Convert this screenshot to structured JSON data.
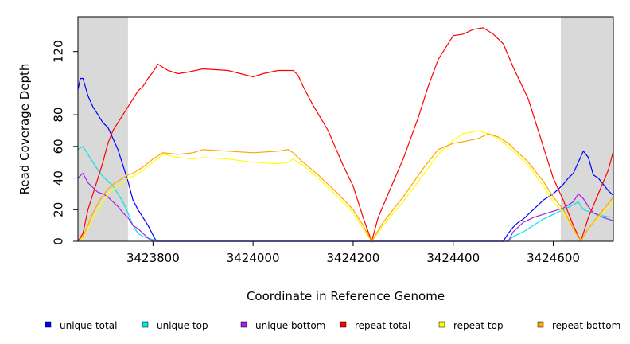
{
  "chart_data": {
    "type": "line",
    "title": "",
    "xlabel": "Coordinate in Reference Genome",
    "ylabel": "Read Coverage Depth",
    "xlim": [
      3423650,
      3424720
    ],
    "ylim": [
      0,
      142
    ],
    "xticks": [
      3423800,
      3424000,
      3424200,
      3424400,
      3424600
    ],
    "yticks": [
      0,
      20,
      40,
      60,
      80,
      120
    ],
    "shaded_regions": [
      [
        3423650,
        3423750
      ],
      [
        3424615,
        3424720
      ]
    ],
    "legend_placement": "bottom",
    "series": [
      {
        "name": "unique total",
        "color": "#0000ff",
        "x": [
          3423650,
          3423655,
          3423660,
          3423670,
          3423680,
          3423690,
          3423700,
          3423710,
          3423720,
          3423730,
          3423740,
          3423750,
          3423760,
          3423770,
          3423780,
          3423790,
          3423800,
          3423805,
          3423810,
          3424200,
          3424500,
          3424510,
          3424520,
          3424530,
          3424540,
          3424550,
          3424560,
          3424570,
          3424580,
          3424590,
          3424600,
          3424610,
          3424620,
          3424630,
          3424640,
          3424650,
          3424660,
          3424670,
          3424680,
          3424690,
          3424700,
          3424710,
          3424720
        ],
        "y": [
          96,
          103,
          103,
          92,
          85,
          80,
          75,
          72,
          65,
          58,
          48,
          38,
          26,
          20,
          15,
          10,
          4,
          1,
          0,
          0,
          0,
          5,
          9,
          12,
          14,
          17,
          20,
          23,
          26,
          28,
          30,
          33,
          36,
          40,
          43,
          50,
          57,
          53,
          42,
          40,
          36,
          32,
          29
        ]
      },
      {
        "name": "unique top",
        "color": "#00e5e5",
        "x": [
          3423650,
          3423660,
          3423670,
          3423680,
          3423690,
          3423700,
          3423710,
          3423720,
          3423730,
          3423740,
          3423750,
          3423760,
          3423770,
          3423780,
          3423790,
          3423800,
          3423810,
          3424200,
          3424510,
          3424520,
          3424540,
          3424560,
          3424580,
          3424600,
          3424620,
          3424640,
          3424650,
          3424660,
          3424680,
          3424700,
          3424720
        ],
        "y": [
          58,
          60,
          55,
          50,
          45,
          41,
          38,
          35,
          30,
          25,
          18,
          10,
          5,
          3,
          2,
          1,
          0,
          0,
          0,
          3,
          6,
          10,
          14,
          17,
          20,
          23,
          25,
          20,
          18,
          16,
          15
        ]
      },
      {
        "name": "unique bottom",
        "color": "#a020f0",
        "x": [
          3423650,
          3423660,
          3423670,
          3423680,
          3423690,
          3423700,
          3423710,
          3423720,
          3423730,
          3423740,
          3423750,
          3423760,
          3423770,
          3423780,
          3423790,
          3423800,
          3424200,
          3424510,
          3424520,
          3424540,
          3424560,
          3424580,
          3424600,
          3424620,
          3424640,
          3424650,
          3424660,
          3424670,
          3424680,
          3424700,
          3424720
        ],
        "y": [
          40,
          43,
          37,
          34,
          31,
          30,
          28,
          25,
          22,
          18,
          15,
          10,
          8,
          5,
          2,
          0,
          0,
          0,
          6,
          12,
          15,
          17,
          19,
          21,
          25,
          30,
          27,
          22,
          18,
          15,
          13
        ]
      },
      {
        "name": "repeat total",
        "color": "#ff0000",
        "x": [
          3423650,
          3423660,
          3423670,
          3423680,
          3423690,
          3423700,
          3423710,
          3423720,
          3423730,
          3423740,
          3423750,
          3423760,
          3423770,
          3423780,
          3423790,
          3423800,
          3423810,
          3423830,
          3423850,
          3423870,
          3423900,
          3423950,
          3424000,
          3424020,
          3424050,
          3424080,
          3424090,
          3424100,
          3424120,
          3424150,
          3424180,
          3424200,
          3424220,
          3424237,
          3424250,
          3424270,
          3424300,
          3424330,
          3424350,
          3424370,
          3424400,
          3424420,
          3424440,
          3424460,
          3424480,
          3424500,
          3424520,
          3424550,
          3424580,
          3424600,
          3424620,
          3424640,
          3424655,
          3424670,
          3424690,
          3424710,
          3424720
        ],
        "y": [
          0,
          5,
          20,
          30,
          40,
          50,
          62,
          70,
          75,
          80,
          85,
          90,
          95,
          98,
          103,
          107,
          112,
          108,
          106,
          107,
          109,
          108,
          104,
          106,
          108,
          108,
          105,
          98,
          86,
          70,
          48,
          35,
          15,
          0,
          15,
          30,
          52,
          78,
          98,
          115,
          130,
          131,
          134,
          135,
          131,
          125,
          110,
          90,
          60,
          40,
          26,
          10,
          0,
          15,
          30,
          45,
          57
        ]
      },
      {
        "name": "repeat top",
        "color": "#ffff00",
        "x": [
          3423650,
          3423660,
          3423670,
          3423680,
          3423690,
          3423700,
          3423710,
          3423720,
          3423730,
          3423740,
          3423750,
          3423760,
          3423780,
          3423800,
          3423820,
          3423850,
          3423880,
          3423900,
          3423950,
          3424000,
          3424050,
          3424070,
          3424080,
          3424100,
          3424130,
          3424170,
          3424200,
          3424220,
          3424237,
          3424260,
          3424300,
          3424340,
          3424370,
          3424400,
          3424420,
          3424450,
          3424470,
          3424490,
          3424510,
          3424550,
          3424580,
          3424600,
          3424620,
          3424640,
          3424655,
          3424670,
          3424690,
          3424720
        ],
        "y": [
          0,
          2,
          8,
          15,
          20,
          25,
          30,
          33,
          35,
          37,
          40,
          41,
          45,
          50,
          55,
          53,
          52,
          53,
          52,
          50,
          49,
          50,
          52,
          48,
          40,
          28,
          18,
          8,
          0,
          10,
          25,
          42,
          55,
          64,
          68,
          70,
          68,
          65,
          60,
          48,
          35,
          25,
          18,
          8,
          0,
          8,
          15,
          25
        ]
      },
      {
        "name": "repeat bottom",
        "color": "#ffa500",
        "x": [
          3423650,
          3423660,
          3423670,
          3423680,
          3423690,
          3423700,
          3423710,
          3423720,
          3423730,
          3423740,
          3423750,
          3423760,
          3423780,
          3423800,
          3423820,
          3423850,
          3423880,
          3423900,
          3423950,
          3424000,
          3424050,
          3424070,
          3424080,
          3424100,
          3424130,
          3424170,
          3424200,
          3424220,
          3424237,
          3424260,
          3424300,
          3424340,
          3424370,
          3424400,
          3424420,
          3424450,
          3424470,
          3424490,
          3424510,
          3424550,
          3424580,
          3424600,
          3424620,
          3424640,
          3424655,
          3424670,
          3424690,
          3424720
        ],
        "y": [
          0,
          3,
          10,
          18,
          24,
          29,
          33,
          36,
          38,
          40,
          42,
          43,
          47,
          52,
          56,
          55,
          56,
          58,
          57,
          56,
          57,
          58,
          56,
          50,
          42,
          30,
          20,
          10,
          0,
          12,
          28,
          46,
          58,
          62,
          63,
          65,
          68,
          66,
          62,
          50,
          38,
          28,
          20,
          8,
          0,
          8,
          16,
          28
        ]
      }
    ]
  }
}
